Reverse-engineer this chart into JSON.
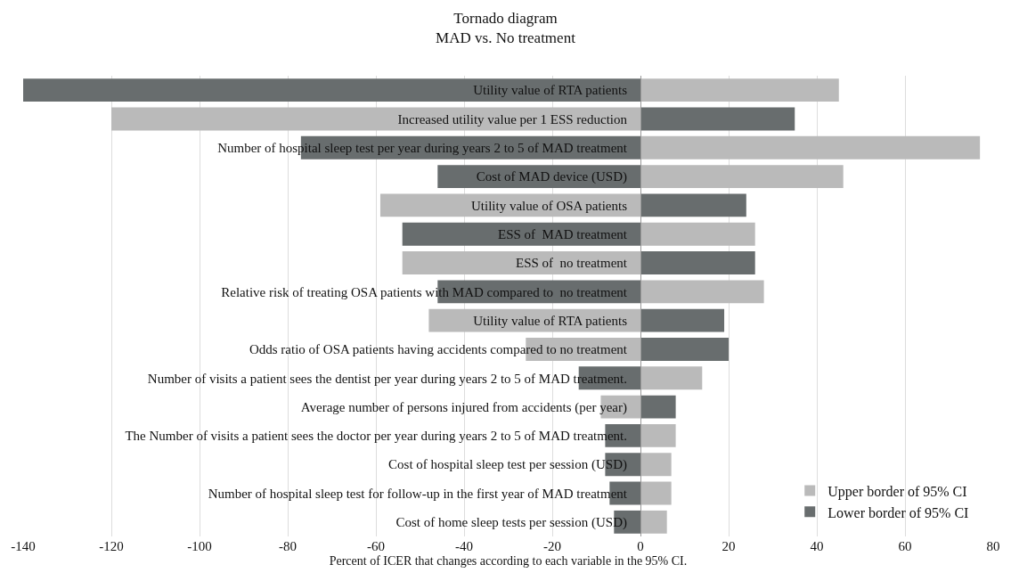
{
  "chart_data": {
    "type": "bar",
    "orientation": "horizontal",
    "title": "Tornado diagram",
    "subtitle": "MAD vs. No treatment",
    "xlabel": "Percent of ICER that changes according to each variable in the 95% CI.",
    "categories": [
      "Utility value of RTA patients",
      "Increased utility value per 1 ESS reduction",
      "Number of hospital sleep test per year during years 2 to 5 of MAD treatment",
      "Cost of MAD device (USD)",
      "Utility value of OSA patients",
      "ESS of  MAD treatment",
      "ESS of  no treatment",
      "Relative risk of treating OSA patients with MAD compared to  no treatment",
      "Utility value of RTA patients",
      "Odds ratio of OSA patients having accidents compared to no treatment",
      "Number of visits a patient sees the dentist per year during years 2 to 5 of MAD treatment.",
      "Average number of persons injured from accidents (per year)",
      "The Number of visits a patient sees the doctor per year during years 2 to 5 of MAD treatment.",
      "Cost of hospital sleep test per session (USD)",
      "Number of hospital sleep test for follow-up in the first year of MAD treatment",
      "Cost of home sleep tests per session (USD)"
    ],
    "series": [
      {
        "name": "Upper border of 95% CI",
        "color": "#bababa",
        "values": [
          45,
          -120,
          77,
          46,
          -59,
          26,
          -54,
          28,
          -48,
          -26,
          14,
          -9,
          8,
          7,
          7,
          6
        ]
      },
      {
        "name": "Lower border of 95% CI",
        "color": "#686d6e",
        "values": [
          -140,
          35,
          -77,
          -46,
          24,
          -54,
          26,
          -46,
          19,
          20,
          -14,
          8,
          -8,
          -8,
          -7,
          -6
        ]
      }
    ],
    "xlim": [
      -140,
      80
    ],
    "xticks": [
      -140,
      -120,
      -100,
      -80,
      -60,
      -40,
      -20,
      0,
      20,
      40,
      60,
      80
    ],
    "stacked": true,
    "grid": "x",
    "legend": "bottom right"
  }
}
